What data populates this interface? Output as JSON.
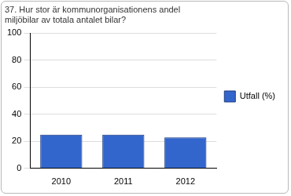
{
  "chart_data": {
    "type": "bar",
    "title": [
      "37. Hur stor är kommunorganisationens andel",
      "miljöbilar av totala antalet bilar?"
    ],
    "categories": [
      "2010",
      "2011",
      "2012"
    ],
    "series": [
      {
        "name": "Utfall (%)",
        "color": "#3366cc",
        "values": [
          25,
          25,
          23
        ]
      }
    ],
    "ylim": [
      0,
      100
    ],
    "yticks": [
      0,
      20,
      40,
      60,
      80,
      100
    ],
    "grid": true,
    "legend": "right"
  }
}
